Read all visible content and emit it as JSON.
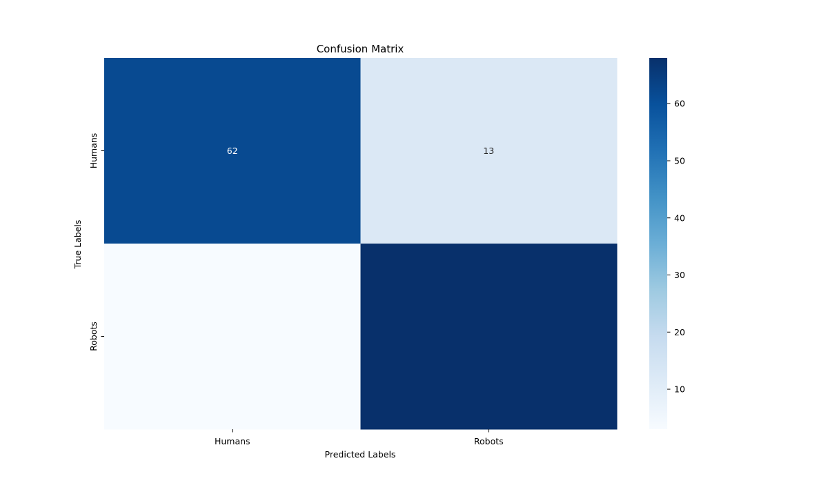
{
  "chart_data": {
    "type": "heatmap",
    "title": "Confusion Matrix",
    "xlabel": "Predicted Labels",
    "ylabel": "True Labels",
    "x_categories": [
      "Humans",
      "Robots"
    ],
    "y_categories": [
      "Humans",
      "Robots"
    ],
    "values": [
      [
        62,
        13
      ],
      [
        3,
        68
      ]
    ],
    "annotations": [
      [
        "62",
        "13"
      ],
      [
        "",
        ""
      ]
    ],
    "colormap": "Blues",
    "colorbar": {
      "range": [
        3,
        68
      ],
      "ticks": [
        10,
        20,
        30,
        40,
        50,
        60
      ],
      "tick_labels": [
        "10",
        "20",
        "30",
        "40",
        "50",
        "60"
      ]
    },
    "colors": {
      "cell_0_0": "#084a91",
      "cell_0_1": "#dbe8f5",
      "cell_1_0": "#f7fbff",
      "cell_1_1": "#08306b",
      "label_light": "#ffffff",
      "label_dark": "#262626"
    }
  }
}
